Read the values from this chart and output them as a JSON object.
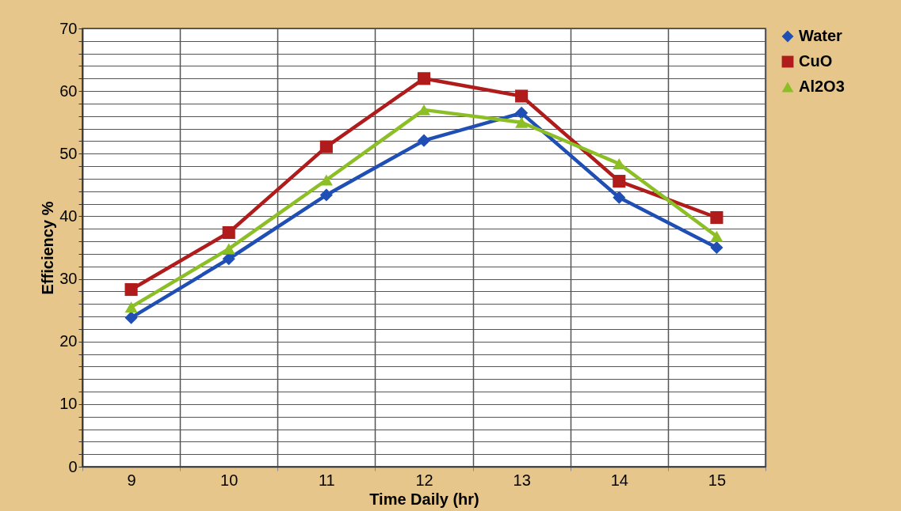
{
  "chart_data": {
    "type": "line",
    "xlabel": "Time Daily (hr)",
    "ylabel": "Efficiency %",
    "categories": [
      "9",
      "10",
      "11",
      "12",
      "13",
      "14",
      "15"
    ],
    "series": [
      {
        "name": "Water",
        "color": "#1f4fb5",
        "marker": "diamond",
        "values": [
          23.8,
          33.2,
          43.4,
          52.1,
          56.5,
          43,
          35
        ]
      },
      {
        "name": "CuO",
        "color": "#b01c1c",
        "marker": "square",
        "values": [
          28.3,
          37.4,
          51.1,
          62,
          59.2,
          45.6,
          39.8
        ]
      },
      {
        "name": "Al2O3",
        "color": "#8cbf26",
        "marker": "triangle",
        "values": [
          25.5,
          34.8,
          45.8,
          57,
          55,
          48.4,
          36.8
        ]
      }
    ],
    "ylim": [
      0,
      70
    ],
    "yticks": [
      0,
      {
        "value": 2,
        "label": null
      },
      {
        "value": 4,
        "label": null
      },
      {
        "value": 6,
        "label": null
      },
      {
        "value": 8,
        "label": null
      },
      10,
      {
        "value": 12,
        "label": null
      },
      {
        "value": 14,
        "label": null
      },
      {
        "value": 16,
        "label": null
      },
      {
        "value": 18,
        "label": null
      },
      20,
      {
        "value": 22,
        "label": null
      },
      {
        "value": 24,
        "label": null
      },
      {
        "value": 26,
        "label": null
      },
      {
        "value": 28,
        "label": null
      },
      30,
      {
        "value": 32,
        "label": null
      },
      {
        "value": 34,
        "label": null
      },
      {
        "value": 36,
        "label": null
      },
      {
        "value": 38,
        "label": null
      },
      40,
      {
        "value": 42,
        "label": null
      },
      {
        "value": 44,
        "label": null
      },
      {
        "value": 46,
        "label": null
      },
      {
        "value": 48,
        "label": null
      },
      50,
      {
        "value": 52,
        "label": null
      },
      {
        "value": 54,
        "label": null
      },
      {
        "value": 56,
        "label": null
      },
      {
        "value": 58,
        "label": null
      },
      60,
      {
        "value": 62,
        "label": null
      },
      {
        "value": 64,
        "label": null
      },
      {
        "value": 66,
        "label": null
      },
      {
        "value": 68,
        "label": null
      },
      70
    ],
    "grid": true,
    "legend": "right",
    "line_style": "solid"
  }
}
